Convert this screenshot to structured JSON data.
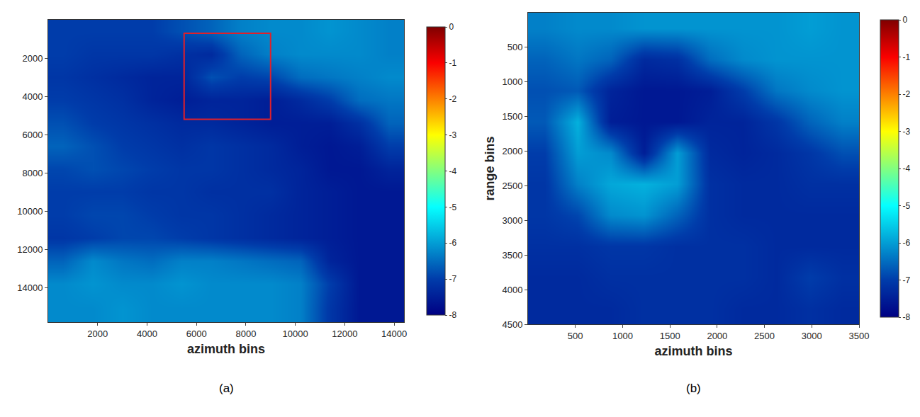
{
  "chart_data": [
    {
      "type": "heatmap",
      "caption": "(a)",
      "x_label": "azimuth bins",
      "xlim": [
        0,
        14400
      ],
      "ylim": [
        15800,
        0
      ],
      "xticks": [
        2000,
        4000,
        6000,
        8000,
        10000,
        12000,
        14000
      ],
      "yticks": [
        2000,
        4000,
        6000,
        8000,
        10000,
        12000,
        14000
      ],
      "x_edges": [
        0,
        1200,
        2400,
        3600,
        4800,
        6000,
        7200,
        8400,
        9600,
        10800,
        12000,
        13200,
        14400
      ],
      "y_edges": [
        0,
        1200,
        2400,
        3600,
        4800,
        6000,
        7200,
        8400,
        9600,
        10800,
        12000,
        13200,
        14400,
        15800
      ],
      "z": [
        [
          -7.0,
          -7.0,
          -7.0,
          -7.0,
          -6.8,
          -6.6,
          -6.3,
          -6.2,
          -6.2,
          -6.1,
          -6.2,
          -6.3
        ],
        [
          -7.0,
          -7.1,
          -7.1,
          -7.1,
          -7.2,
          -7.3,
          -6.6,
          -6.3,
          -6.2,
          -6.2,
          -6.2,
          -6.3
        ],
        [
          -7.1,
          -7.2,
          -7.3,
          -7.4,
          -7.4,
          -6.8,
          -7.0,
          -6.9,
          -6.5,
          -6.4,
          -6.3,
          -6.2
        ],
        [
          -7.0,
          -7.1,
          -7.2,
          -7.4,
          -7.5,
          -7.4,
          -7.4,
          -7.5,
          -7.3,
          -7.0,
          -6.5,
          -6.4
        ],
        [
          -6.8,
          -7.0,
          -7.1,
          -7.2,
          -7.3,
          -7.3,
          -7.4,
          -7.5,
          -7.5,
          -7.5,
          -7.2,
          -6.6
        ],
        [
          -6.6,
          -6.8,
          -7.0,
          -7.1,
          -7.2,
          -7.1,
          -7.2,
          -7.3,
          -7.5,
          -7.6,
          -7.5,
          -7.0
        ],
        [
          -6.9,
          -6.8,
          -6.9,
          -7.0,
          -7.1,
          -7.1,
          -7.2,
          -7.3,
          -7.4,
          -7.6,
          -7.6,
          -7.4
        ],
        [
          -7.0,
          -7.0,
          -7.0,
          -7.1,
          -7.1,
          -7.2,
          -7.2,
          -7.2,
          -7.4,
          -7.5,
          -7.6,
          -7.6
        ],
        [
          -7.0,
          -6.9,
          -6.9,
          -7.0,
          -7.1,
          -7.1,
          -7.2,
          -7.3,
          -7.4,
          -7.5,
          -7.6,
          -7.6
        ],
        [
          -7.1,
          -7.0,
          -6.9,
          -6.9,
          -7.0,
          -7.1,
          -7.2,
          -7.3,
          -7.4,
          -7.5,
          -7.6,
          -7.6
        ],
        [
          -6.6,
          -6.2,
          -6.4,
          -6.5,
          -6.3,
          -6.3,
          -6.4,
          -6.5,
          -6.6,
          -7.4,
          -7.6,
          -7.6
        ],
        [
          -6.2,
          -6.1,
          -6.2,
          -6.2,
          -6.1,
          -6.2,
          -6.2,
          -6.2,
          -6.3,
          -7.0,
          -7.6,
          -7.6
        ],
        [
          -6.2,
          -6.2,
          -6.1,
          -6.2,
          -6.2,
          -6.2,
          -6.2,
          -6.2,
          -6.3,
          -7.1,
          -7.6,
          -7.6
        ]
      ],
      "colorbar": {
        "range": [
          -8,
          0
        ],
        "ticks": [
          0,
          -1,
          -2,
          -3,
          -4,
          -5,
          -6,
          -7,
          -8
        ]
      },
      "rectangle": {
        "x": [
          5500,
          9000
        ],
        "y": [
          700,
          5200
        ],
        "color": "#e0202a"
      }
    },
    {
      "type": "heatmap",
      "caption": "(b)",
      "x_label": "azimuth bins",
      "y_label": "range bins",
      "xlim": [
        0,
        3500
      ],
      "ylim": [
        4500,
        0
      ],
      "xticks": [
        500,
        1000,
        1500,
        2000,
        2500,
        3000,
        3500
      ],
      "yticks": [
        500,
        1000,
        1500,
        2000,
        2500,
        3000,
        3500,
        4000,
        4500
      ],
      "x_edges": [
        0,
        350,
        700,
        1050,
        1400,
        1750,
        2100,
        2450,
        2800,
        3150,
        3500
      ],
      "y_edges": [
        0,
        450,
        900,
        1350,
        1800,
        2250,
        2700,
        3150,
        3600,
        4050,
        4500
      ],
      "z": [
        [
          -6.3,
          -6.2,
          -6.2,
          -6.1,
          -6.1,
          -6.1,
          -6.1,
          -6.1,
          -6.0,
          -6.1
        ],
        [
          -6.6,
          -6.4,
          -6.6,
          -7.3,
          -7.2,
          -6.5,
          -6.2,
          -6.1,
          -6.1,
          -6.1
        ],
        [
          -6.8,
          -6.7,
          -7.4,
          -7.6,
          -7.6,
          -7.5,
          -7.0,
          -6.4,
          -6.2,
          -6.1
        ],
        [
          -6.7,
          -5.8,
          -7.5,
          -7.6,
          -7.6,
          -7.4,
          -7.4,
          -7.1,
          -6.6,
          -6.3
        ],
        [
          -7.0,
          -6.0,
          -6.2,
          -7.5,
          -6.0,
          -7.3,
          -7.4,
          -7.3,
          -7.1,
          -6.8
        ],
        [
          -7.1,
          -6.3,
          -5.9,
          -5.8,
          -6.0,
          -7.2,
          -7.3,
          -7.3,
          -7.2,
          -7.2
        ],
        [
          -7.1,
          -6.9,
          -6.2,
          -6.1,
          -6.6,
          -7.2,
          -7.3,
          -7.3,
          -7.3,
          -7.3
        ],
        [
          -7.2,
          -7.2,
          -7.1,
          -7.1,
          -7.2,
          -7.2,
          -7.2,
          -7.3,
          -7.3,
          -7.3
        ],
        [
          -7.3,
          -7.3,
          -7.2,
          -7.2,
          -7.2,
          -7.2,
          -7.2,
          -7.3,
          -7.0,
          -7.2
        ],
        [
          -7.3,
          -7.3,
          -7.3,
          -7.2,
          -7.2,
          -7.2,
          -7.3,
          -7.3,
          -7.2,
          -7.3
        ]
      ],
      "colorbar": {
        "range": [
          -8,
          0
        ],
        "ticks": [
          0,
          -1,
          -2,
          -3,
          -4,
          -5,
          -6,
          -7,
          -8
        ]
      }
    }
  ]
}
